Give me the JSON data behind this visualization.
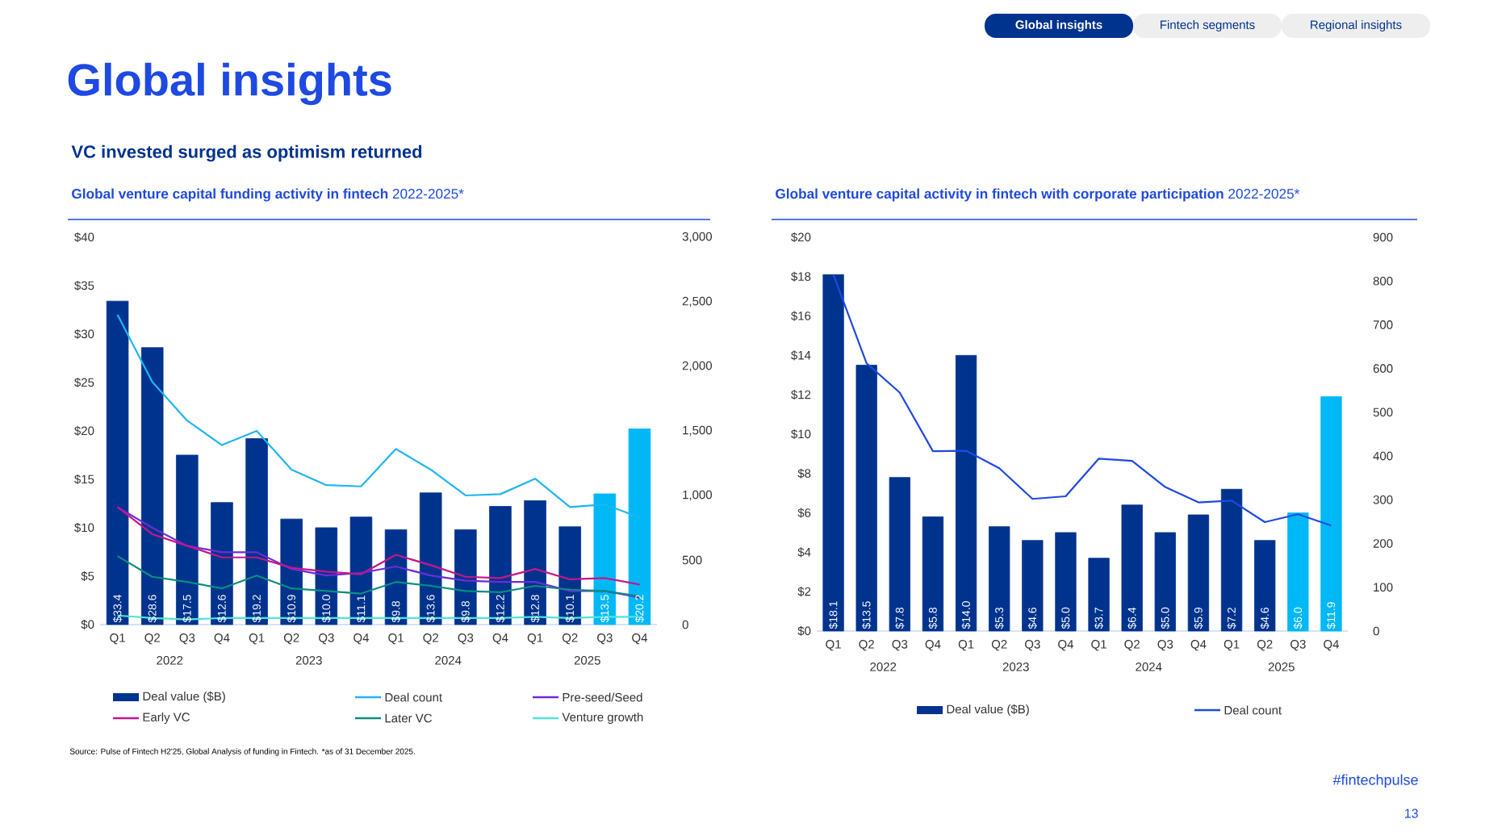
{
  "chart_data": [
    {
      "type": "bar",
      "title": "**Global venture capital funding activity in fintech** 2022-2025*",
      "categories": [
        "Q1",
        "Q2",
        "Q3",
        "Q4",
        "Q1",
        "Q2",
        "Q3",
        "Q4",
        "Q1",
        "Q2",
        "Q3",
        "Q4",
        "Q1",
        "Q2",
        "Q3",
        "Q4"
      ],
      "series": [
        {
          "name": "Deal value ($B)",
          "color": "#00338d",
          "colors": [
            "#00338d",
            "#00338d",
            "#00338d",
            "#00338d",
            "#00338d",
            "#00338d",
            "#00338d",
            "#00338d",
            "#00338d",
            "#00338d",
            "#00338d",
            "#00338d",
            "#00338d",
            "#00338d",
            "#00b8f5",
            "#00b8f5"
          ],
          "values": [
            33.4,
            28.6,
            17.5,
            12.6,
            19.2,
            10.9,
            10.0,
            11.1,
            9.8,
            13.6,
            9.8,
            12.2,
            12.8,
            10.1,
            13.5,
            20.2
          ],
          "value_labels": [
            "$33.4",
            "$28.6",
            "$17.5",
            "$12.6",
            "$19.2",
            "$10.9",
            "$10.0",
            "$11.1",
            "$9.8",
            "$13.6",
            "$9.8",
            "$12.2",
            "$12.8",
            "$10.1",
            "$13.5",
            "$20.2"
          ]
        },
        {
          "name": "Deal count",
          "type": "line",
          "axis": "y2",
          "color": "#1fb6f0",
          "values": [
            2400,
            1880,
            1580,
            1390,
            1500,
            1200,
            1080,
            1070,
            1360,
            1200,
            1000,
            1010,
            1130,
            910,
            930,
            830
          ]
        },
        {
          "name": "Pre-seed/Seed",
          "type": "line",
          "axis": "y2",
          "color": "#6d2bd9",
          "values": [
            910,
            750,
            610,
            560,
            560,
            430,
            380,
            400,
            450,
            380,
            340,
            330,
            330,
            260,
            260,
            210
          ]
        },
        {
          "name": "Early VC",
          "type": "line",
          "axis": "y2",
          "color": "#c5168c",
          "values": [
            910,
            700,
            610,
            520,
            520,
            440,
            410,
            390,
            540,
            460,
            370,
            360,
            430,
            350,
            360,
            310
          ]
        },
        {
          "name": "Later VC",
          "type": "line",
          "axis": "y2",
          "color": "#098e7e",
          "values": [
            530,
            370,
            330,
            280,
            380,
            280,
            260,
            240,
            330,
            300,
            260,
            250,
            300,
            270,
            260,
            220
          ]
        },
        {
          "name": "Venture growth",
          "type": "line",
          "axis": "y2",
          "color": "#4ee6d8",
          "values": [
            70,
            50,
            40,
            50,
            50,
            50,
            50,
            50,
            50,
            50,
            50,
            50,
            60,
            50,
            60,
            60
          ]
        }
      ],
      "ylim": [
        0,
        40
      ],
      "yticks": [
        {
          "value": 0,
          "label": "$0"
        },
        {
          "value": 5,
          "label": "$5"
        },
        {
          "value": 10,
          "label": "$10"
        },
        {
          "value": 15,
          "label": "$15"
        },
        {
          "value": 20,
          "label": "$20"
        },
        {
          "value": 25,
          "label": "$25"
        },
        {
          "value": 30,
          "label": "$30"
        },
        {
          "value": 35,
          "label": "$35"
        },
        {
          "value": 40,
          "label": "$40"
        }
      ],
      "y2lim": [
        0,
        3000
      ],
      "y2ticks": [
        0,
        500,
        {
          "value": 1000,
          "label": "1,000"
        },
        {
          "value": 1500,
          "label": "1,500"
        },
        {
          "value": 2000,
          "label": "2,000"
        },
        {
          "value": 2500,
          "label": "2,500"
        },
        {
          "value": 3000,
          "label": "3,000"
        }
      ],
      "legend": "bottom",
      "annotations": [
        "2022",
        "2023",
        "2024",
        "2025",
        "Global insights",
        "Global insights",
        "Fintech segments",
        "Regional insights",
        "VC invested surged as optimism returned",
        "Source: Pulse of Fintech H2'25, Global Analysis of funding in Fintech. *as of 31 December 2025.",
        "#fintechpulse",
        "13"
      ]
    },
    {
      "type": "bar",
      "title": "**Global venture capital activity in fintech with corporate participation** 2022-2025*",
      "categories": [
        "Q1",
        "Q2",
        "Q3",
        "Q4",
        "Q1",
        "Q2",
        "Q3",
        "Q4",
        "Q1",
        "Q2",
        "Q3",
        "Q4",
        "Q1",
        "Q2",
        "Q3",
        "Q4"
      ],
      "series": [
        {
          "name": "Deal value ($B)",
          "color": "#00338d",
          "colors": [
            "#00338d",
            "#00338d",
            "#00338d",
            "#00338d",
            "#00338d",
            "#00338d",
            "#00338d",
            "#00338d",
            "#00338d",
            "#00338d",
            "#00338d",
            "#00338d",
            "#00338d",
            "#00338d",
            "#00b8f5",
            "#00b8f5"
          ],
          "values": [
            18.1,
            13.5,
            7.8,
            5.8,
            14.0,
            5.3,
            4.6,
            5.0,
            3.7,
            6.4,
            5.0,
            5.9,
            7.2,
            4.6,
            6.0,
            11.9
          ],
          "value_labels": [
            "$18.1",
            "$13.5",
            "$7.8",
            "$5.8",
            "$14.0",
            "$5.3",
            "$4.6",
            "$5.0",
            "$3.7",
            "$6.4",
            "$5.0",
            "$5.9",
            "$7.2",
            "$4.6",
            "$6.0",
            "$11.9"
          ]
        },
        {
          "name": "Deal count",
          "type": "line",
          "axis": "y2",
          "color": "#1e49e2",
          "values": [
            815,
            612,
            545,
            411,
            412,
            372,
            302,
            308,
            394,
            389,
            329,
            294,
            298,
            249,
            267,
            241
          ]
        }
      ],
      "ylim": [
        0,
        20
      ],
      "yticks": [
        {
          "value": 0,
          "label": "$0"
        },
        {
          "value": 2,
          "label": "$2"
        },
        {
          "value": 4,
          "label": "$4"
        },
        {
          "value": 6,
          "label": "$6"
        },
        {
          "value": 8,
          "label": "$8"
        },
        {
          "value": 10,
          "label": "$10"
        },
        {
          "value": 12,
          "label": "$12"
        },
        {
          "value": 14,
          "label": "$14"
        },
        {
          "value": 16,
          "label": "$16"
        },
        {
          "value": 18,
          "label": "$18"
        },
        {
          "value": 20,
          "label": "$20"
        }
      ],
      "y2lim": [
        0,
        900
      ],
      "y2ticks": [
        0,
        100,
        200,
        300,
        400,
        500,
        600,
        700,
        800,
        900
      ],
      "legend": "bottom",
      "annotations": [
        "2022",
        "2023",
        "2024",
        "2025"
      ]
    }
  ]
}
